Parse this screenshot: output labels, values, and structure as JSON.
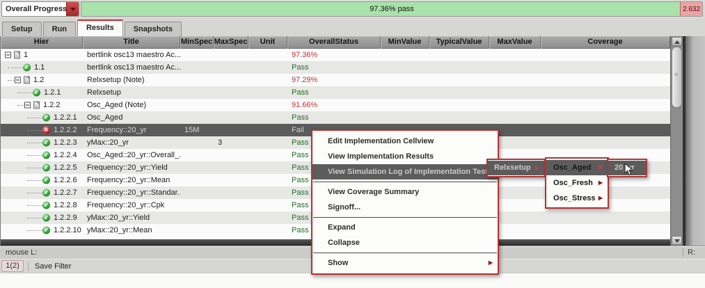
{
  "topbar": {
    "selector_label": "Overall Progress",
    "progress": {
      "pass_label": "97.36% pass",
      "fail_label": "2.632",
      "pass_pct": 97.36
    }
  },
  "tabs": [
    {
      "label": "Setup",
      "active": false
    },
    {
      "label": "Run",
      "active": false
    },
    {
      "label": "Results",
      "active": true
    },
    {
      "label": "Snapshots",
      "active": false
    }
  ],
  "table": {
    "columns": [
      "Hier",
      "Title",
      "MinSpec",
      "MaxSpec",
      "Unit",
      "OverallStatus",
      "MinValue",
      "TypicalValue",
      "MaxValue",
      "Coverage"
    ],
    "rows": [
      {
        "hier": "1",
        "level": 0,
        "type": "branch",
        "title": "bertlink osc13 maestro Ac...",
        "min_spec": "",
        "max_spec": "",
        "unit": "",
        "status": "97.36%",
        "status_kind": "pct",
        "zebra": "white",
        "selected": false
      },
      {
        "hier": "1.1",
        "level": 1,
        "type": "pass",
        "title": "bertlink osc13 maestro Ac...",
        "min_spec": "",
        "max_spec": "",
        "unit": "",
        "status": "Pass",
        "status_kind": "pass",
        "zebra": "gray",
        "selected": false
      },
      {
        "hier": "1.2",
        "level": 1,
        "type": "branch",
        "title": "Relxsetup (Note)",
        "min_spec": "",
        "max_spec": "",
        "unit": "",
        "status": "97.29%",
        "status_kind": "pct",
        "zebra": "white",
        "selected": false
      },
      {
        "hier": "1.2.1",
        "level": 2,
        "type": "pass",
        "title": "Relxsetup",
        "min_spec": "",
        "max_spec": "",
        "unit": "",
        "status": "Pass",
        "status_kind": "pass",
        "zebra": "gray",
        "selected": false
      },
      {
        "hier": "1.2.2",
        "level": 2,
        "type": "branch",
        "title": "Osc_Aged (Note)",
        "min_spec": "",
        "max_spec": "",
        "unit": "",
        "status": "91.66%",
        "status_kind": "pct",
        "zebra": "white",
        "selected": false
      },
      {
        "hier": "1.2.2.1",
        "level": 3,
        "type": "pass",
        "title": "Osc_Aged",
        "min_spec": "",
        "max_spec": "",
        "unit": "",
        "status": "Pass",
        "status_kind": "pass",
        "zebra": "gray",
        "selected": false
      },
      {
        "hier": "1.2.2.2",
        "level": 3,
        "type": "fail",
        "title": "Frequency::20_yr",
        "min_spec": "15M",
        "max_spec": "",
        "unit": "",
        "status": "Fail",
        "status_kind": "fail",
        "zebra": "white",
        "selected": true
      },
      {
        "hier": "1.2.2.3",
        "level": 3,
        "type": "pass",
        "title": "yMax::20_yr",
        "min_spec": "",
        "max_spec": "3",
        "unit": "",
        "status": "Pass",
        "status_kind": "pass",
        "zebra": "gray",
        "selected": false
      },
      {
        "hier": "1.2.2.4",
        "level": 3,
        "type": "pass",
        "title": "Osc_Aged::20_yr::Overall_...",
        "min_spec": "",
        "max_spec": "",
        "unit": "",
        "status": "Pass",
        "status_kind": "pass",
        "zebra": "white",
        "selected": false
      },
      {
        "hier": "1.2.2.5",
        "level": 3,
        "type": "pass",
        "title": "Frequency::20_yr::Yield",
        "min_spec": "",
        "max_spec": "",
        "unit": "",
        "status": "Pass",
        "status_kind": "pass",
        "zebra": "gray",
        "selected": false
      },
      {
        "hier": "1.2.2.6",
        "level": 3,
        "type": "pass",
        "title": "Frequency::20_yr::Mean",
        "min_spec": "",
        "max_spec": "",
        "unit": "",
        "status": "Pass",
        "status_kind": "pass",
        "zebra": "white",
        "selected": false
      },
      {
        "hier": "1.2.2.7",
        "level": 3,
        "type": "pass",
        "title": "Frequency::20_yr::Standar...",
        "min_spec": "",
        "max_spec": "",
        "unit": "",
        "status": "Pass",
        "status_kind": "pass",
        "zebra": "gray",
        "selected": false
      },
      {
        "hier": "1.2.2.8",
        "level": 3,
        "type": "pass",
        "title": "Frequency::20_yr::Cpk",
        "min_spec": "",
        "max_spec": "",
        "unit": "",
        "status": "Pass",
        "status_kind": "pass",
        "zebra": "white",
        "selected": false
      },
      {
        "hier": "1.2.2.9",
        "level": 3,
        "type": "pass",
        "title": "yMax::20_yr::Yield",
        "min_spec": "",
        "max_spec": "",
        "unit": "",
        "status": "Pass",
        "status_kind": "pass",
        "zebra": "gray",
        "selected": false
      },
      {
        "hier": "1.2.2.10",
        "level": 3,
        "type": "pass",
        "title": "yMax::20_yr::Mean",
        "min_spec": "",
        "max_spec": "",
        "unit": "",
        "status": "Pass",
        "status_kind": "pass",
        "zebra": "white",
        "selected": false
      }
    ]
  },
  "context_menu": {
    "items": [
      {
        "label": "Edit Implementation Cellview"
      },
      {
        "label": "View Implementation Results"
      },
      {
        "label": "View Simulation Log of Implementation Test",
        "submenu": true,
        "highlighted": true
      },
      {
        "separator": true
      },
      {
        "label": "View Coverage Summary"
      },
      {
        "label": "Signoff..."
      },
      {
        "separator": true
      },
      {
        "label": "Expand"
      },
      {
        "label": "Collapse"
      },
      {
        "separator": true
      },
      {
        "label": "Show",
        "submenu": true
      }
    ]
  },
  "submenu_test": {
    "items": [
      {
        "label": "Relxsetup",
        "submenu": true,
        "highlighted": true
      }
    ]
  },
  "submenu_sim": {
    "items": [
      {
        "label": "Osc_Aged",
        "submenu": true,
        "highlighted": true
      },
      {
        "label": "Osc_Fresh",
        "submenu": true
      },
      {
        "label": "Osc_Stress",
        "submenu": true
      }
    ]
  },
  "submenu_run": {
    "items": [
      {
        "label": "20_yr",
        "highlighted": true
      }
    ]
  },
  "status_bar": {
    "mouse_label": "mouse L:",
    "right_label": "R:",
    "filter_count": "1(2)",
    "save_filter_label": "Save Filter"
  },
  "colors": {
    "progress_pass": "#a9e2ab",
    "progress_fail": "#eba4a4",
    "menu_accent": "#b13434",
    "tab_accent": "#c03030",
    "pass_text": "#1e6f1e",
    "pct_text": "#c13333"
  }
}
